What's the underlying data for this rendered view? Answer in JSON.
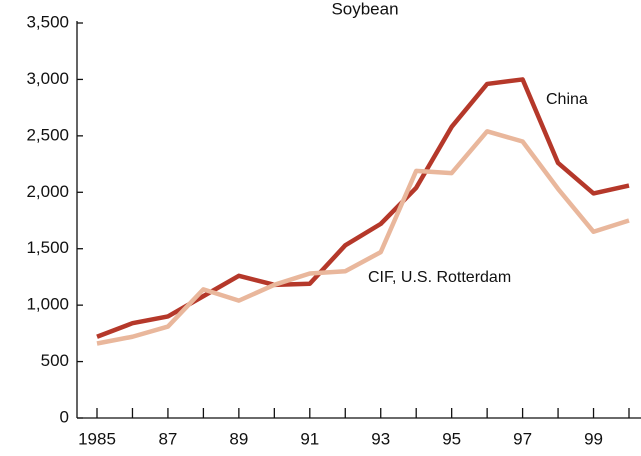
{
  "chart_data": {
    "type": "line",
    "title": "Soybean",
    "x": [
      1985,
      1986,
      1987,
      1988,
      1989,
      1990,
      1991,
      1992,
      1993,
      1994,
      1995,
      1996,
      1997,
      1998,
      1999,
      2000
    ],
    "series": [
      {
        "name": "China",
        "color": "#b5382a",
        "values": [
          720,
          840,
          900,
          1080,
          1260,
          1180,
          1190,
          1530,
          1720,
          2040,
          2580,
          2960,
          3000,
          2260,
          1990,
          2060
        ]
      },
      {
        "name": "CIF, U.S. Rotterdam",
        "color": "#e9b79c",
        "values": [
          660,
          720,
          810,
          1140,
          1040,
          1180,
          1280,
          1300,
          1470,
          2190,
          2170,
          2540,
          2450,
          2030,
          1650,
          1750
        ]
      }
    ],
    "xlim": [
      1985,
      2000
    ],
    "xticks": [
      {
        "value": 1985,
        "label": "1985"
      },
      {
        "value": 1987,
        "label": "87"
      },
      {
        "value": 1989,
        "label": "89"
      },
      {
        "value": 1991,
        "label": "91"
      },
      {
        "value": 1993,
        "label": "93"
      },
      {
        "value": 1995,
        "label": "95"
      },
      {
        "value": 1997,
        "label": "97"
      },
      {
        "value": 1999,
        "label": "99"
      }
    ],
    "xminorticks": [
      1986,
      1988,
      1990,
      1992,
      1994,
      1996,
      1998,
      2000
    ],
    "ylim": [
      0,
      3500
    ],
    "yticks": [
      0,
      500,
      {
        "value": 1000,
        "label": "1,000"
      },
      {
        "value": 1500,
        "label": "1,500"
      },
      {
        "value": 2000,
        "label": "2,000"
      },
      {
        "value": 2500,
        "label": "2,500"
      },
      {
        "value": 3000,
        "label": "3,000"
      },
      {
        "value": 3500,
        "label": "3,500"
      }
    ],
    "grid": false
  }
}
